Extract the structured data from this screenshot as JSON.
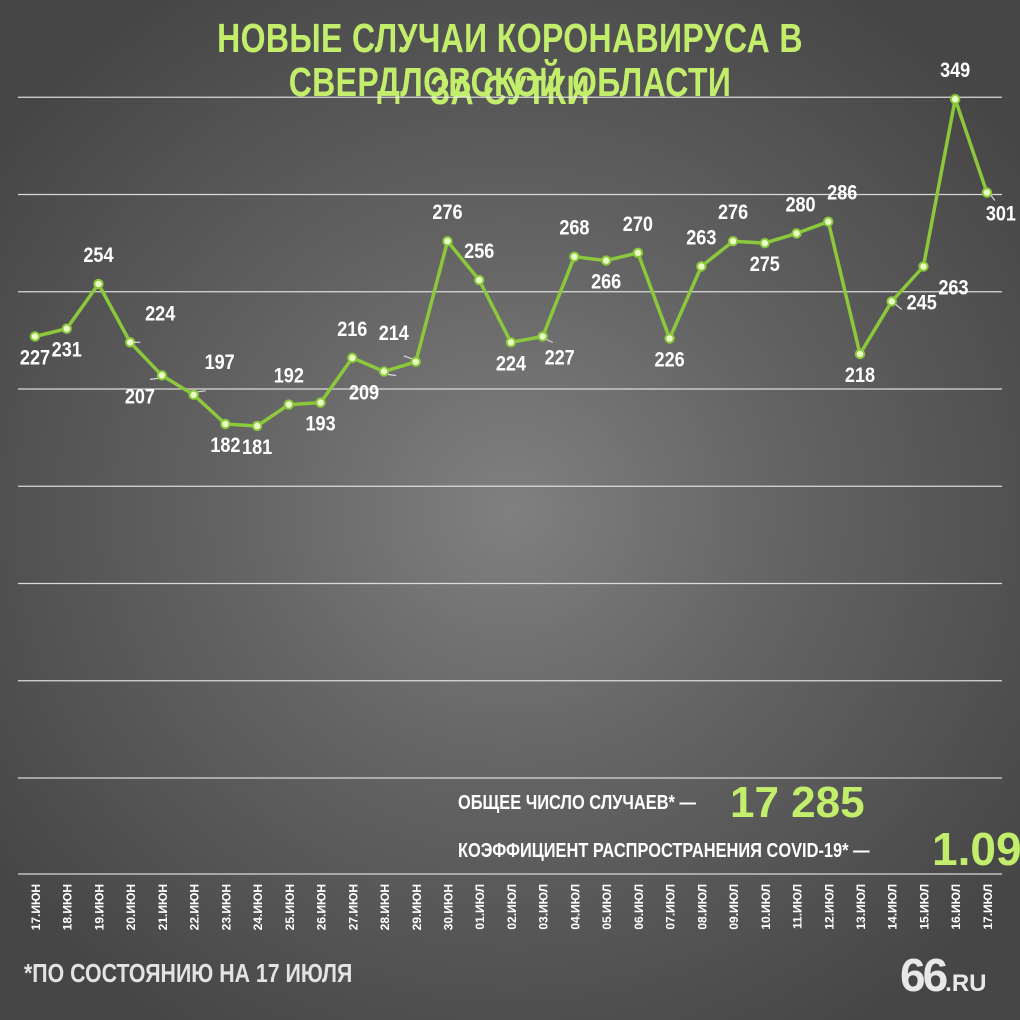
{
  "title": {
    "line1": "НОВЫЕ СЛУЧАИ КОРОНАВИРУСА В СВЕРДЛОВСКОЙ ОБЛАСТИ",
    "line2": "ЗА СУТКИ"
  },
  "stats": {
    "total_label": "ОБЩЕЕ ЧИСЛО СЛУЧАЕВ* —",
    "total_value": "17 285",
    "coef_label": "КОЭФФИЦИЕНТ РАСПРОСТРАНЕНИЯ COVID-19* —",
    "coef_value": "1.09"
  },
  "footnote": "*ПО СОСТОЯНИЮ НА 17 ИЮЛЯ",
  "logo": {
    "num": "66",
    "ru": ".RU"
  },
  "colors": {
    "accent": "#c3ee6b",
    "line": "#8cc83c",
    "text": "#ffffff",
    "grid": "#e8e8e8"
  },
  "chart_data": {
    "type": "line",
    "grid": true,
    "categories": [
      "17.ИЮН",
      "18.ИЮН",
      "19.ИЮН",
      "20.ИЮН",
      "21.ИЮН",
      "22.ИЮН",
      "23.ИЮН",
      "24.ИЮН",
      "25.ИЮН",
      "26.ИЮН",
      "27.ИЮН",
      "28.ИЮН",
      "29.ИЮН",
      "30.ИЮН",
      "01.ИЮЛ",
      "02.ИЮЛ",
      "03.ИЮЛ",
      "04.ИЮЛ",
      "05.ИЮЛ",
      "06.ИЮЛ",
      "07.ИЮЛ",
      "08.ИЮЛ",
      "09.ИЮЛ",
      "10.ИЮЛ",
      "11.ИЮЛ",
      "12.ИЮЛ",
      "13.ИЮЛ",
      "14.ИЮЛ",
      "15.ИЮЛ",
      "16.ИЮЛ",
      "17.ИЮЛ"
    ],
    "values": [
      227,
      231,
      254,
      224,
      207,
      197,
      182,
      181,
      192,
      193,
      216,
      209,
      214,
      276,
      256,
      224,
      227,
      268,
      266,
      270,
      226,
      263,
      276,
      275,
      280,
      286,
      218,
      245,
      263,
      349,
      301
    ],
    "ylim": [
      0,
      350
    ]
  }
}
